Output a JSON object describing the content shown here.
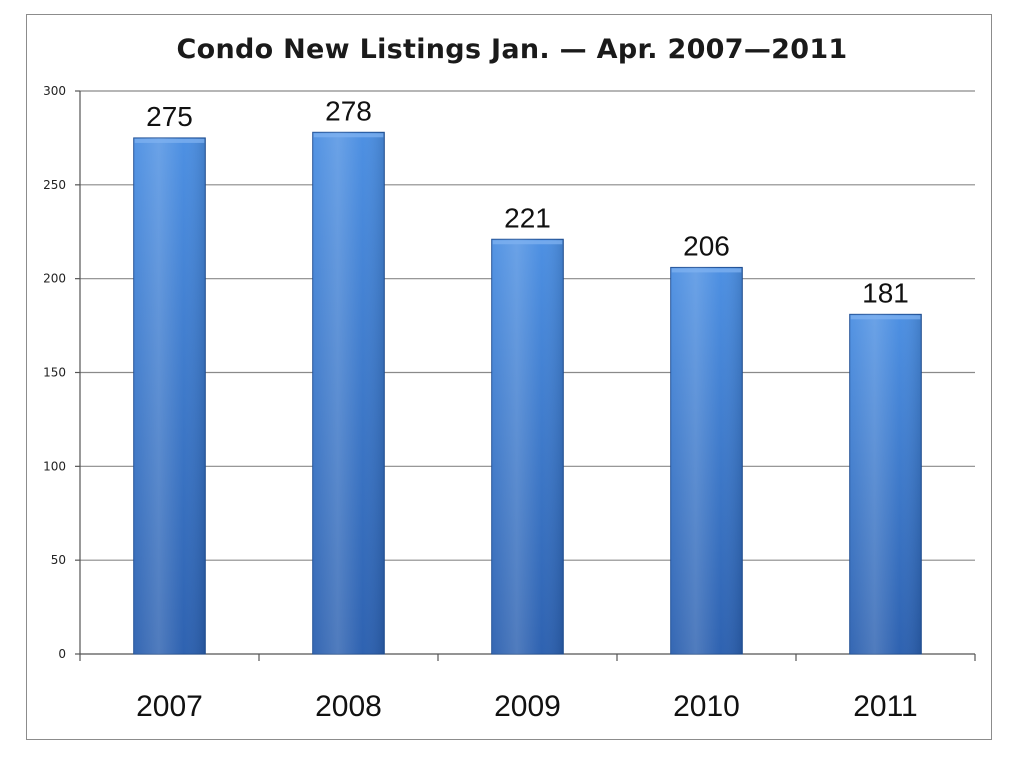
{
  "chart_data": {
    "type": "bar",
    "title": "Condo New Listings Jan. — Apr. 2007—2011",
    "categories": [
      "2007",
      "2008",
      "2009",
      "2010",
      "2011"
    ],
    "values": [
      275,
      278,
      221,
      206,
      181
    ],
    "data_labels": [
      "275",
      "278",
      "221",
      "206",
      "181"
    ],
    "ylim": [
      0,
      300
    ],
    "yticks": [
      "0",
      "50",
      "100",
      "150",
      "200",
      "250",
      "300"
    ],
    "ytick_values": [
      0,
      50,
      100,
      150,
      200,
      250,
      300
    ],
    "xlabel": "",
    "ylabel": "",
    "grid": true,
    "legend": "none",
    "colors": {
      "bar_top": "#4a8ee2",
      "bar_bottom": "#2a5faf",
      "bar_edge": "#1f4f95"
    }
  }
}
